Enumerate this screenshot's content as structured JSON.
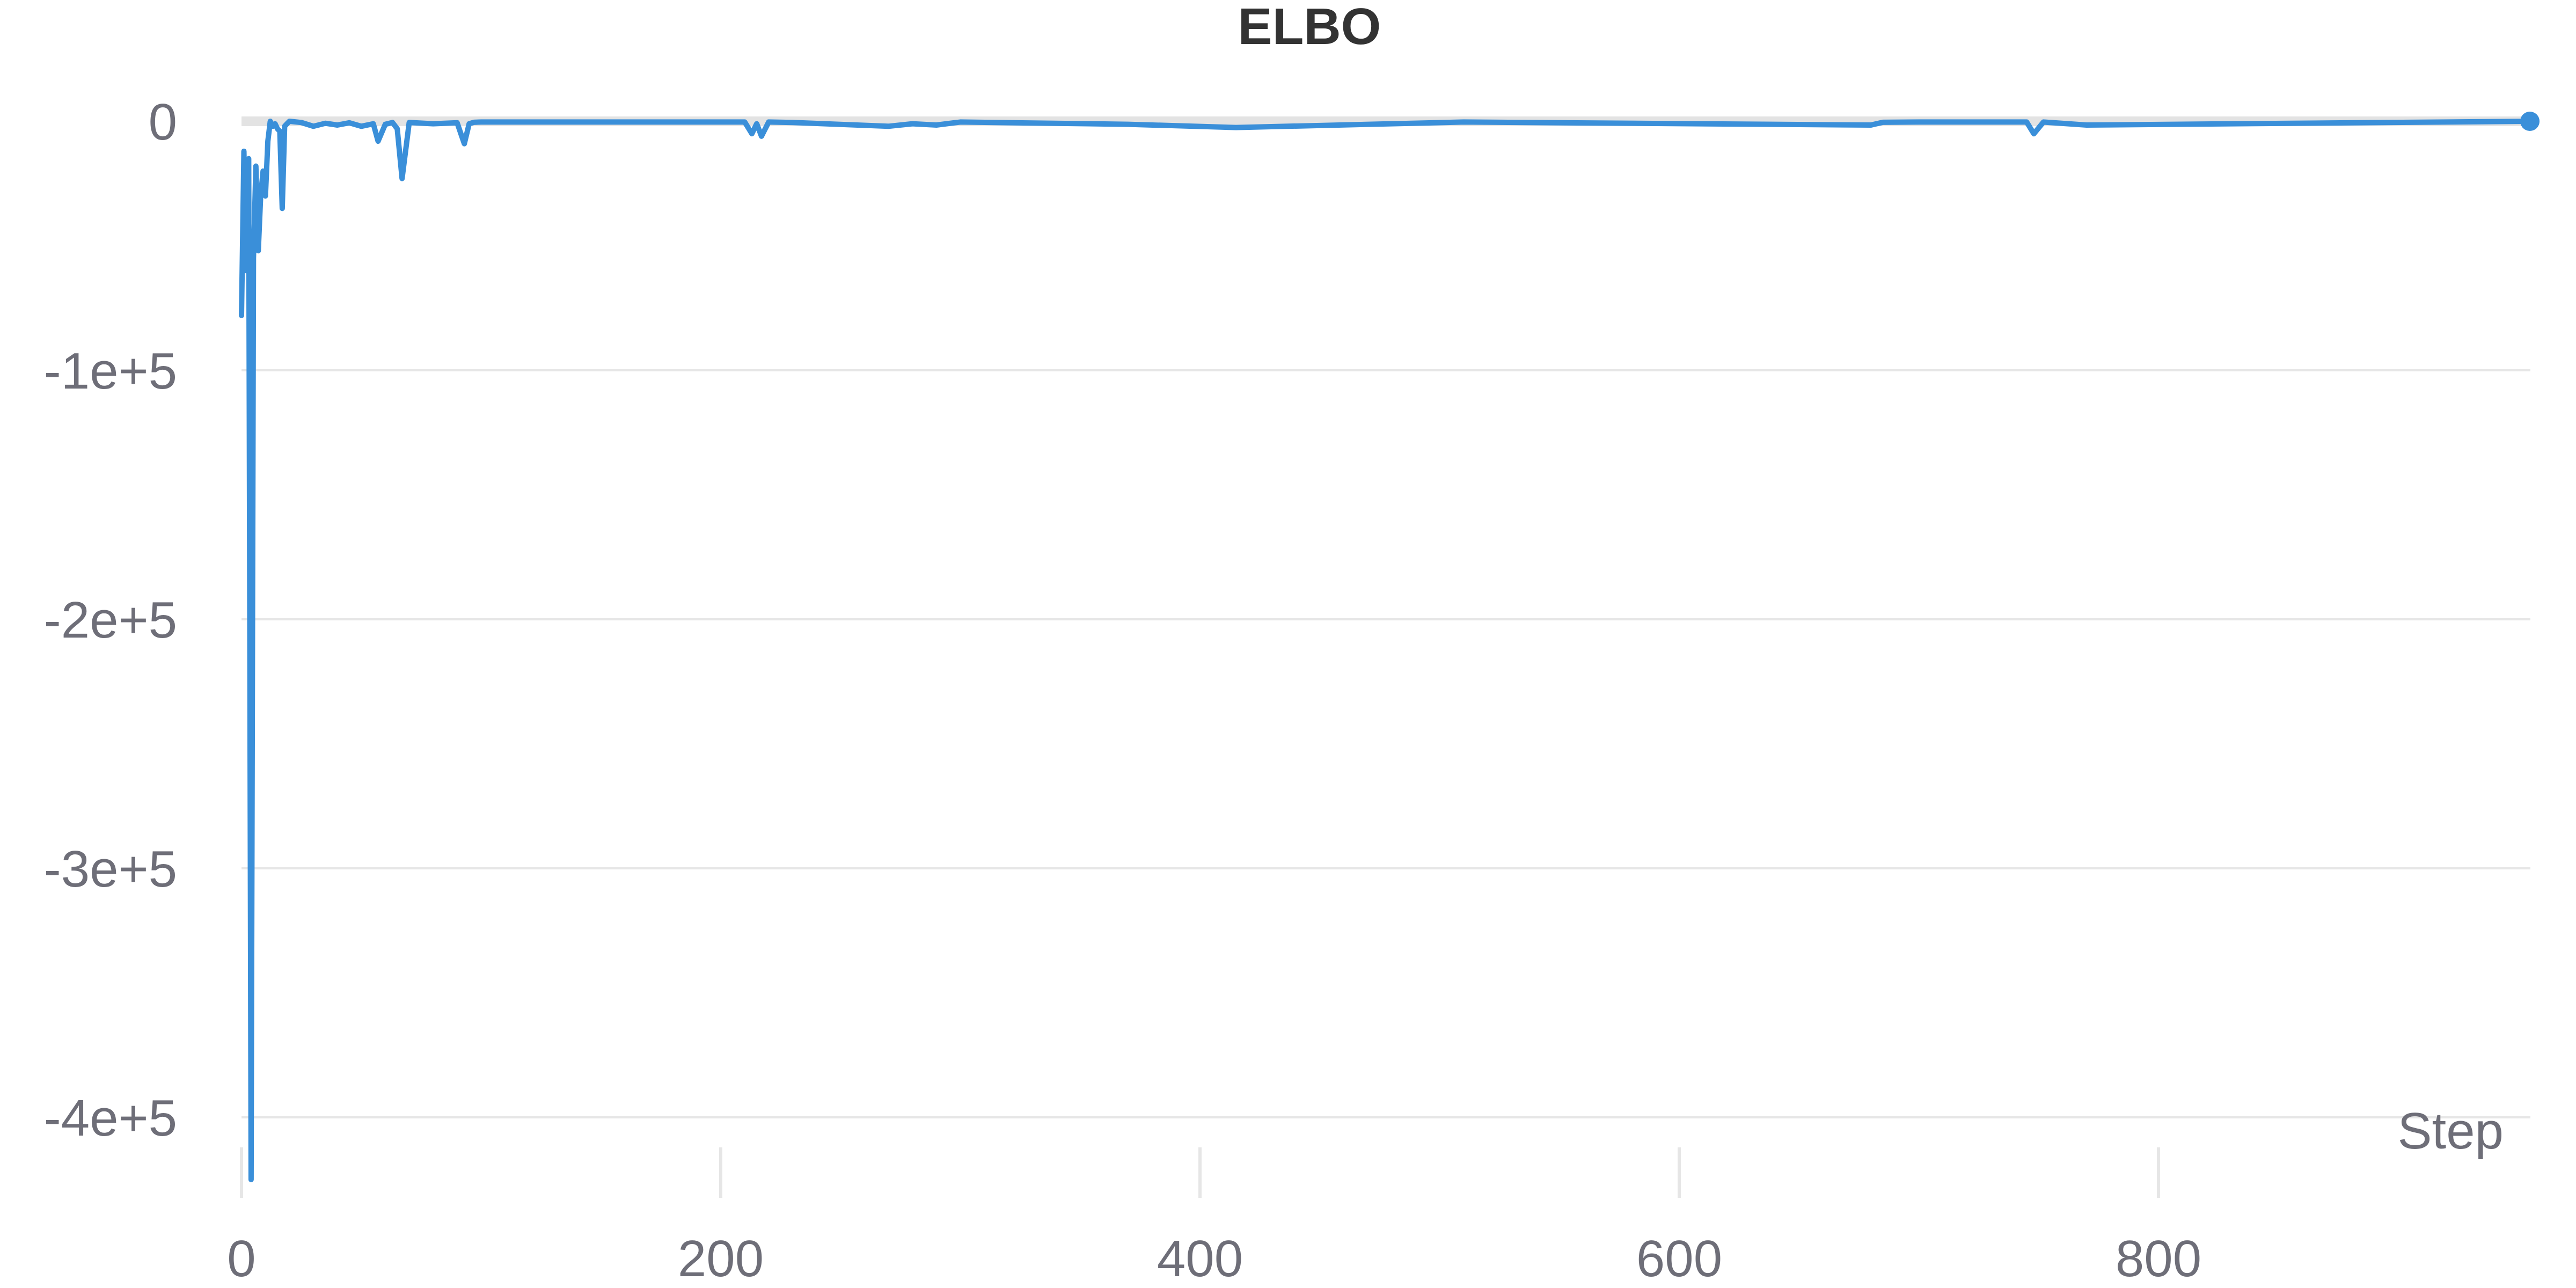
{
  "chart_data": {
    "type": "line",
    "title": "ELBO",
    "xlabel": "Step",
    "ylabel": "",
    "xlim": [
      0,
      955
    ],
    "ylim": [
      -430000,
      0
    ],
    "grid": true,
    "x_ticks": [
      {
        "value": 0,
        "label": "0"
      },
      {
        "value": 200,
        "label": "200"
      },
      {
        "value": 400,
        "label": "400"
      },
      {
        "value": 600,
        "label": "600"
      },
      {
        "value": 800,
        "label": "800"
      }
    ],
    "y_ticks": [
      {
        "value": 0,
        "label": "0"
      },
      {
        "value": -100000,
        "label": "-1e+5"
      },
      {
        "value": -200000,
        "label": "-2e+5"
      },
      {
        "value": -300000,
        "label": "-3e+5"
      },
      {
        "value": -400000,
        "label": "-4e+5"
      }
    ],
    "colors": {
      "series": "#3a8fd9",
      "grid": "#e6e6e6",
      "zero_line": "#e3e3e3",
      "text": "#6e6e78",
      "title": "#333333"
    },
    "series": [
      {
        "x": [
          0,
          1,
          2,
          3,
          4,
          5,
          6,
          7,
          8,
          9,
          10,
          11,
          12,
          13,
          14,
          15,
          16,
          17,
          18,
          19,
          20,
          25,
          30,
          35,
          40,
          45,
          50,
          55,
          57,
          60,
          63,
          65,
          67,
          70,
          80,
          90,
          93,
          95,
          97,
          100,
          150,
          210,
          213,
          215,
          217,
          220,
          230,
          270,
          280,
          290,
          300,
          370,
          415,
          510,
          680,
          685,
          700,
          745,
          748,
          752,
          770,
          955
        ],
        "y": [
          -78000,
          -12000,
          -60000,
          -15000,
          -425000,
          -55000,
          -18000,
          -52000,
          -30000,
          -20000,
          -30000,
          -8000,
          0,
          -2000,
          -1000,
          -3000,
          -4000,
          -35000,
          -2000,
          -1000,
          0,
          -500,
          -2000,
          -800,
          -1500,
          -600,
          -2000,
          -1000,
          -8000,
          -1200,
          -500,
          -3000,
          -23000,
          -500,
          -1000,
          -600,
          -9000,
          -1000,
          -400,
          -300,
          -300,
          -300,
          -5000,
          -1000,
          -6000,
          -300,
          -500,
          -2000,
          -1000,
          -1500,
          -300,
          -1200,
          -2500,
          -300,
          -1500,
          -400,
          -300,
          -300,
          -5000,
          -300,
          -1500,
          0
        ]
      }
    ]
  }
}
